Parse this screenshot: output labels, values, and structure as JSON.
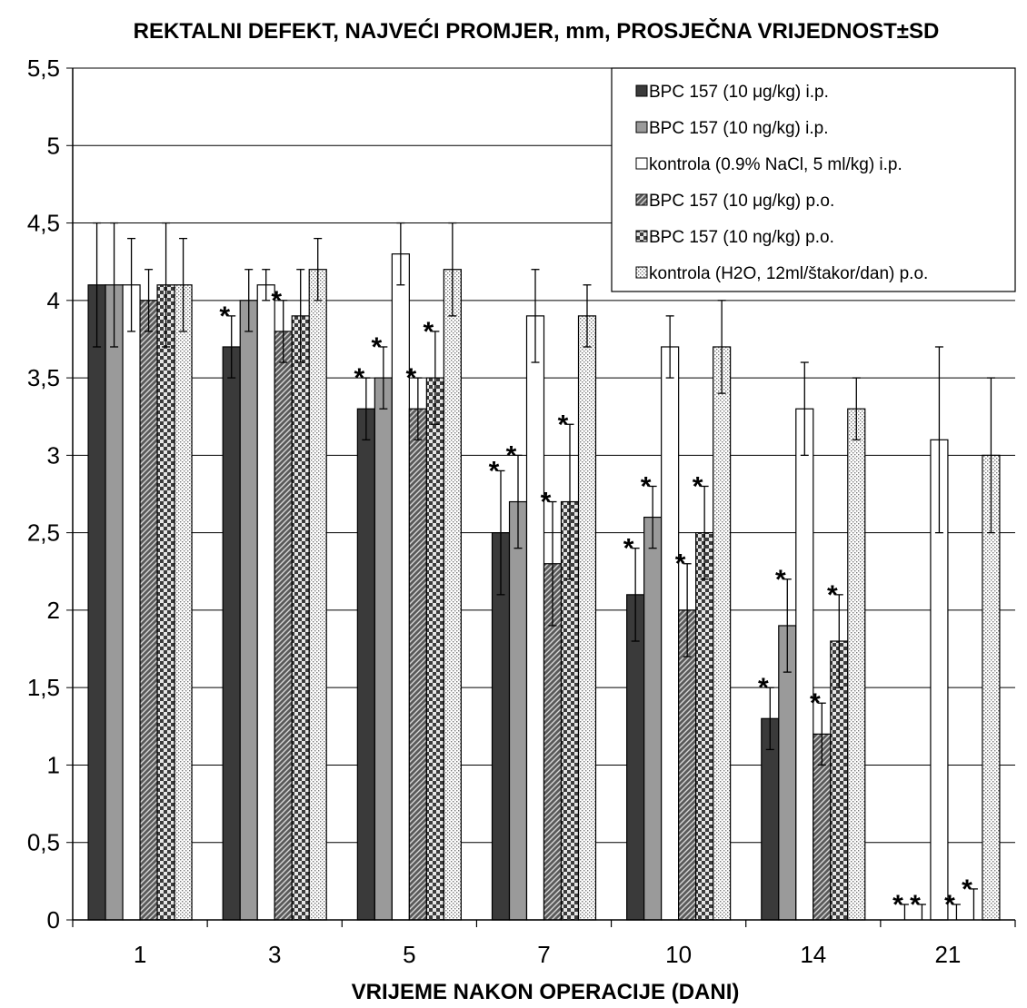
{
  "chart_data": {
    "type": "bar",
    "title": "REKTALNI DEFEKT, NAJVEĆI PROMJER, mm,  PROSJEČNA VRIJEDNOST±SD",
    "xlabel": "VRIJEME NAKON OPERACIJE (DANI)",
    "ylabel": "",
    "categories": [
      "1",
      "3",
      "5",
      "7",
      "10",
      "14",
      "21"
    ],
    "ylim": [
      0,
      5.5
    ],
    "yticks": [
      0,
      0.5,
      1,
      1.5,
      2,
      2.5,
      3,
      3.5,
      4,
      4.5,
      5,
      5.5
    ],
    "ytick_labels": [
      "0",
      "0,5",
      "1",
      "1,5",
      "2",
      "2,5",
      "3",
      "3,5",
      "4",
      "4,5",
      "5",
      "5,5"
    ],
    "grid": true,
    "legend_position": "top-right",
    "significance_marker": "*",
    "series": [
      {
        "name": "BPC 157 (10 μg/kg) i.p.",
        "pattern": "dark",
        "values": [
          4.1,
          3.7,
          3.3,
          2.5,
          2.1,
          1.3,
          0
        ],
        "sd": [
          0.4,
          0.2,
          0.2,
          0.4,
          0.3,
          0.2,
          0.1
        ],
        "significant": [
          false,
          true,
          true,
          true,
          true,
          true,
          true
        ]
      },
      {
        "name": "BPC 157 (10 ng/kg) i.p.",
        "pattern": "gray",
        "values": [
          4.1,
          4.0,
          3.5,
          2.7,
          2.6,
          1.9,
          0
        ],
        "sd": [
          0.4,
          0.2,
          0.2,
          0.3,
          0.2,
          0.3,
          0.1
        ],
        "significant": [
          false,
          false,
          true,
          true,
          true,
          true,
          true
        ]
      },
      {
        "name": "kontrola (0.9% NaCl, 5 ml/kg) i.p.",
        "pattern": "white",
        "values": [
          4.1,
          4.1,
          4.3,
          3.9,
          3.7,
          3.3,
          3.1
        ],
        "sd": [
          0.3,
          0.1,
          0.2,
          0.3,
          0.2,
          0.3,
          0.6
        ],
        "significant": [
          false,
          false,
          false,
          false,
          false,
          false,
          false
        ]
      },
      {
        "name": "BPC 157 (10 μg/kg) p.o.",
        "pattern": "hatch",
        "values": [
          4.0,
          3.8,
          3.3,
          2.3,
          2.0,
          1.2,
          0
        ],
        "sd": [
          0.2,
          0.2,
          0.2,
          0.4,
          0.3,
          0.2,
          0.1
        ],
        "significant": [
          false,
          true,
          true,
          true,
          true,
          true,
          true
        ]
      },
      {
        "name": "BPC 157 (10 ng/kg) p.o.",
        "pattern": "checker",
        "values": [
          4.1,
          3.9,
          3.5,
          2.7,
          2.5,
          1.8,
          0
        ],
        "sd": [
          0.4,
          0.3,
          0.3,
          0.5,
          0.3,
          0.3,
          0.2
        ],
        "significant": [
          false,
          false,
          true,
          true,
          true,
          true,
          true
        ]
      },
      {
        "name": "kontrola (H2O, 12ml/štakor/dan) p.o.",
        "pattern": "dots",
        "values": [
          4.1,
          4.2,
          4.2,
          3.9,
          3.7,
          3.3,
          3.0
        ],
        "sd": [
          0.3,
          0.2,
          0.3,
          0.2,
          0.3,
          0.2,
          0.5
        ],
        "significant": [
          false,
          false,
          false,
          false,
          false,
          false,
          false
        ]
      }
    ]
  }
}
